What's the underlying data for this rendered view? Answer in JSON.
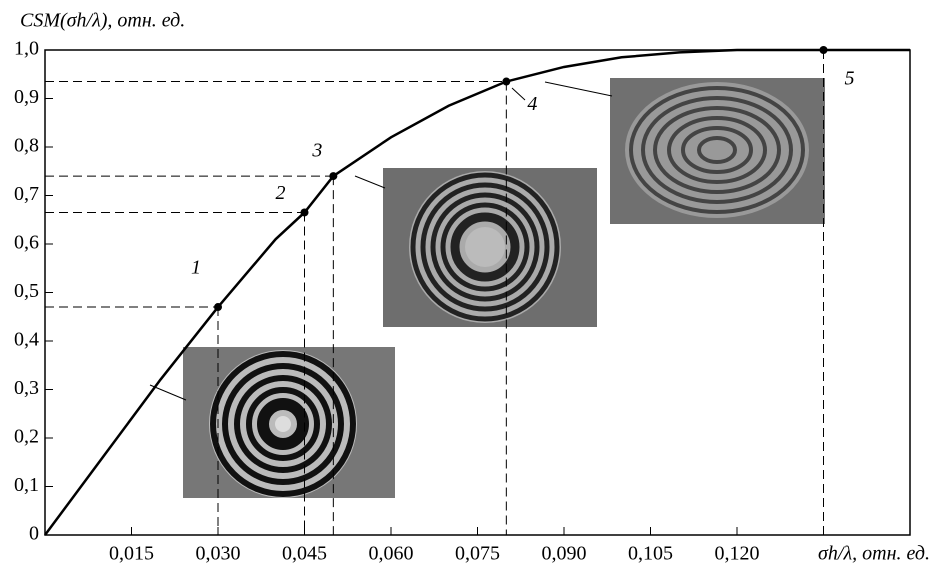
{
  "chart_data": {
    "type": "line",
    "y_label": "CSM(σh/λ), отн. ед.",
    "x_label": "σh/λ, отн. ед.",
    "color": "#000000",
    "x": [
      0,
      0.01,
      0.02,
      0.03,
      0.04,
      0.045,
      0.05,
      0.06,
      0.07,
      0.08,
      0.09,
      0.1,
      0.11,
      0.12,
      0.13,
      0.14,
      0.15
    ],
    "values": [
      0,
      0.16,
      0.32,
      0.47,
      0.61,
      0.665,
      0.74,
      0.82,
      0.885,
      0.935,
      0.965,
      0.985,
      0.995,
      1.0,
      1.0,
      1.0,
      1.0
    ],
    "points": {
      "labels": [
        "1",
        "2",
        "3",
        "4",
        "5"
      ],
      "x": [
        0.03,
        0.045,
        0.05,
        0.08,
        0.135
      ],
      "values": [
        0.47,
        0.665,
        0.74,
        0.935,
        1.0
      ]
    },
    "xlim": [
      0,
      0.15
    ],
    "ylim": [
      0,
      1.0
    ],
    "xticks": [
      {
        "value": 0.015,
        "label": "0,015"
      },
      {
        "value": 0.03,
        "label": "0,030"
      },
      {
        "value": 0.045,
        "label": "0,045"
      },
      {
        "value": 0.06,
        "label": "0,060"
      },
      {
        "value": 0.075,
        "label": "0,075"
      },
      {
        "value": 0.09,
        "label": "0,090"
      },
      {
        "value": 0.105,
        "label": "0,105"
      },
      {
        "value": 0.12,
        "label": "0,120"
      }
    ],
    "yticks": [
      0,
      {
        "value": 0.1,
        "label": "0,1"
      },
      {
        "value": 0.2,
        "label": "0,2"
      },
      {
        "value": 0.3,
        "label": "0,3"
      },
      {
        "value": 0.4,
        "label": "0,4"
      },
      {
        "value": 0.5,
        "label": "0,5"
      },
      {
        "value": 0.6,
        "label": "0,6"
      },
      {
        "value": 0.7,
        "label": "0,7"
      },
      {
        "value": 0.8,
        "label": "0,8"
      },
      {
        "value": 0.9,
        "label": "0,9"
      },
      {
        "value": 1.0,
        "label": "1,0"
      }
    ]
  }
}
